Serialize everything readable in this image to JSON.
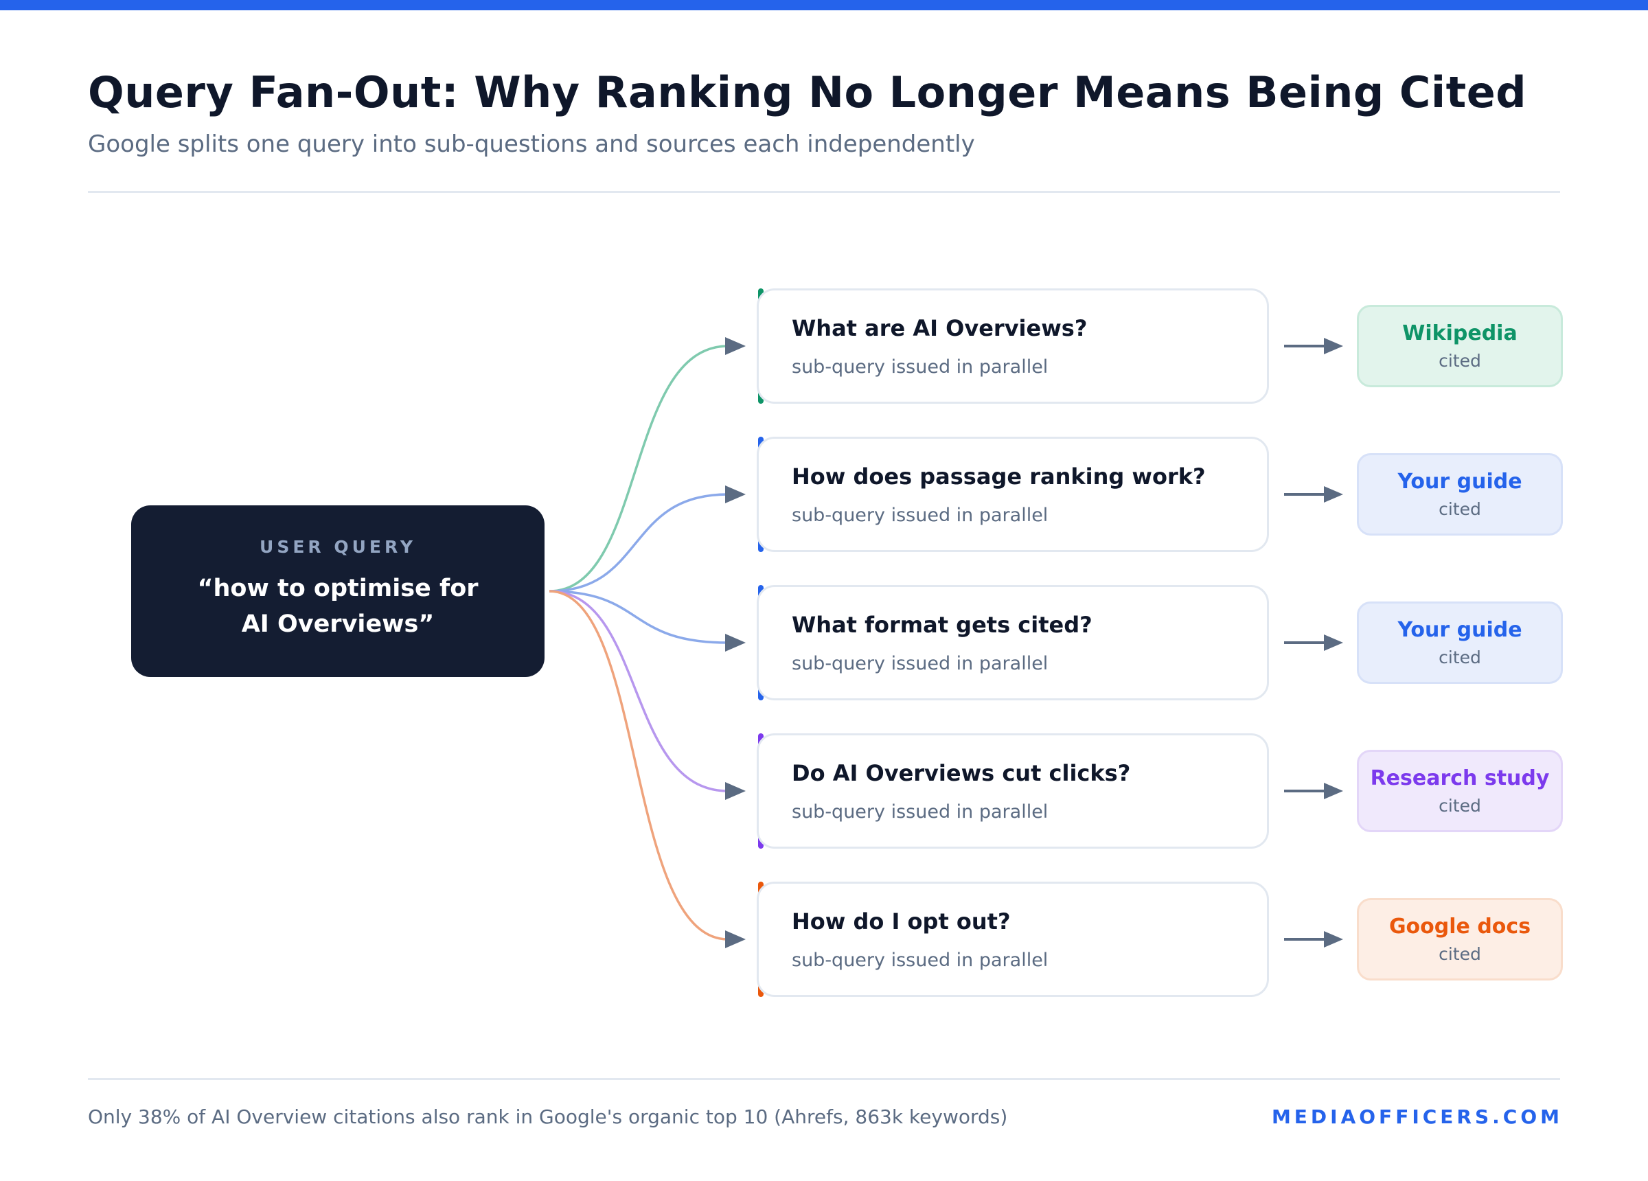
{
  "title": "Query Fan-Out: Why Ranking No Longer Means Being Cited",
  "subtitle": "Google splits one query into sub-questions and sources each independently",
  "user_query": {
    "label": "USER QUERY",
    "text": "“how to optimise for AI Overviews”"
  },
  "branches": [
    {
      "question": "What are AI Overviews?",
      "note": "sub-query issued in parallel",
      "source": "Wikipedia",
      "status": "cited",
      "accent": "#0e9467",
      "line": "#7fcaae",
      "source_bg": "#e2f4ec",
      "source_border": "#c8eadb",
      "source_color": "#0e9467"
    },
    {
      "question": "How does passage ranking work?",
      "note": "sub-query issued in parallel",
      "source": "Your guide",
      "status": "cited",
      "accent": "#2563eb",
      "line": "#8ba9ea",
      "source_bg": "#e8eefc",
      "source_border": "#d7e1f8",
      "source_color": "#2563eb"
    },
    {
      "question": "What format gets cited?",
      "note": "sub-query issued in parallel",
      "source": "Your guide",
      "status": "cited",
      "accent": "#2563eb",
      "line": "#8ba9ea",
      "source_bg": "#e8eefc",
      "source_border": "#d7e1f8",
      "source_color": "#2563eb"
    },
    {
      "question": "Do AI Overviews cut clicks?",
      "note": "sub-query issued in parallel",
      "source": "Research study",
      "status": "cited",
      "accent": "#7c3aed",
      "line": "#b797ee",
      "source_bg": "#f0e9fc",
      "source_border": "#e3d6f8",
      "source_color": "#7c3aed"
    },
    {
      "question": "How do I opt out?",
      "note": "sub-query issued in parallel",
      "source": "Google docs",
      "status": "cited",
      "accent": "#ea580c",
      "line": "#efa37c",
      "source_bg": "#fdeee5",
      "source_border": "#f9ddcb",
      "source_color": "#ea580c"
    }
  ],
  "arrow_color": "#5b6b82",
  "footer": {
    "note": "Only 38% of AI Overview citations also rank in Google's organic top 10 (Ahrefs, 863k keywords)",
    "brand": "MEDIAOFFICERS.COM"
  }
}
